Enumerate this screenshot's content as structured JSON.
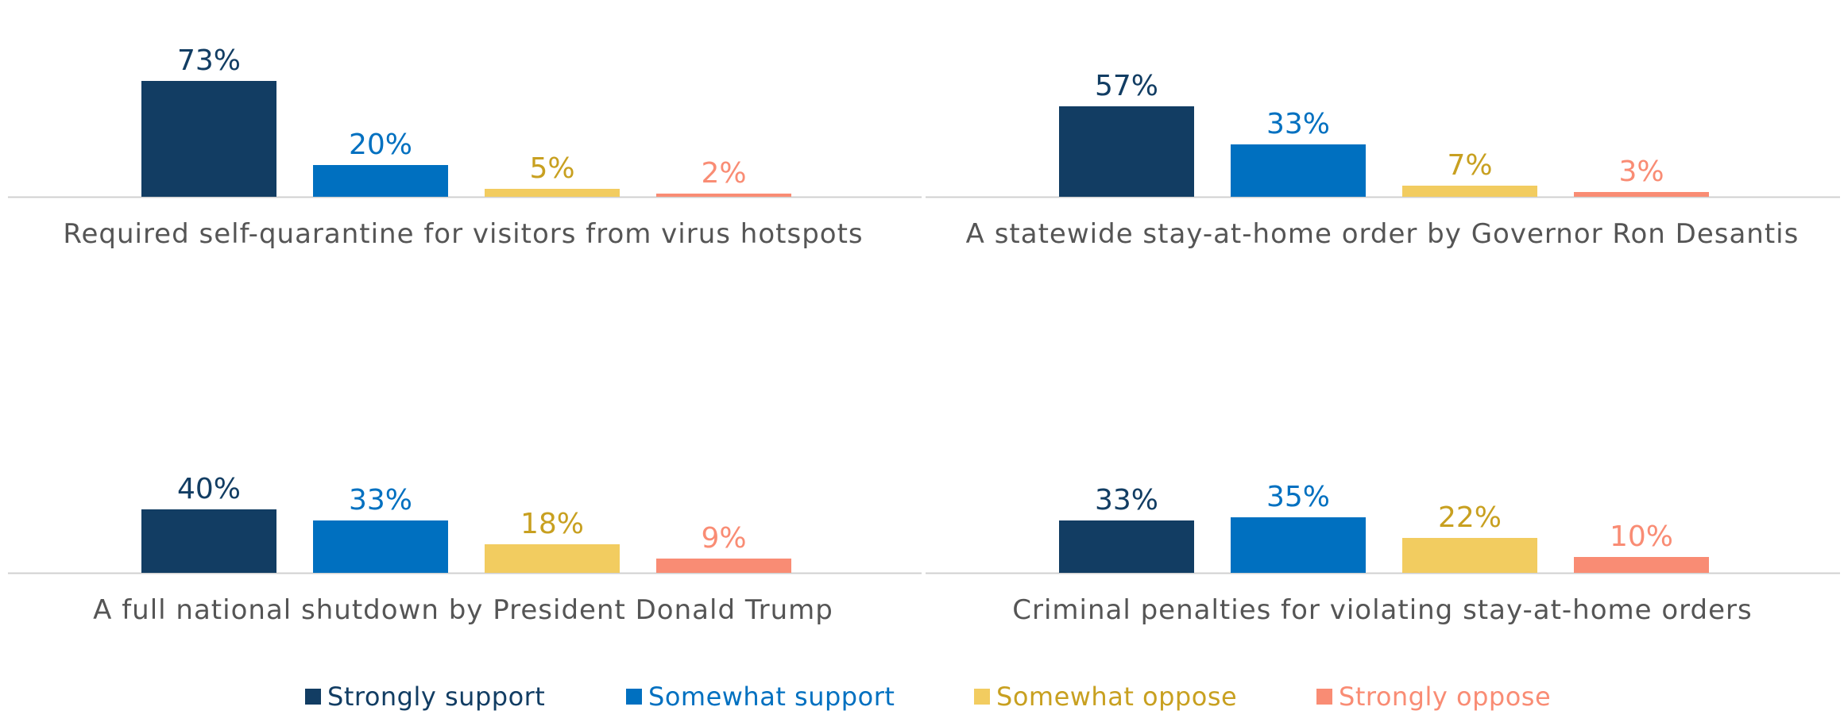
{
  "chart_data": [
    {
      "type": "bar",
      "xlabel": "Required self-quarantine for visitors from virus hotspots",
      "categories": [
        "Strongly support",
        "Somewhat support",
        "Somewhat oppose",
        "Strongly oppose"
      ],
      "values": [
        73,
        20,
        5,
        2
      ],
      "data_labels": [
        "73%",
        "20%",
        "5%",
        "2%"
      ],
      "ylim": [
        0,
        80
      ]
    },
    {
      "type": "bar",
      "xlabel": "A statewide stay-at-home order by Governor Ron Desantis",
      "categories": [
        "Strongly support",
        "Somewhat support",
        "Somewhat oppose",
        "Strongly oppose"
      ],
      "values": [
        57,
        33,
        7,
        3
      ],
      "data_labels": [
        "57%",
        "33%",
        "7%",
        "3%"
      ],
      "ylim": [
        0,
        80
      ]
    },
    {
      "type": "bar",
      "xlabel": "A full national shutdown by President Donald Trump",
      "categories": [
        "Strongly support",
        "Somewhat support",
        "Somewhat oppose",
        "Strongly oppose"
      ],
      "values": [
        40,
        33,
        18,
        9
      ],
      "data_labels": [
        "40%",
        "33%",
        "18%",
        "9%"
      ],
      "ylim": [
        0,
        80
      ]
    },
    {
      "type": "bar",
      "xlabel": "Criminal penalties for violating stay-at-home orders",
      "categories": [
        "Strongly support",
        "Somewhat support",
        "Somewhat oppose",
        "Strongly oppose"
      ],
      "values": [
        33,
        35,
        22,
        10
      ],
      "data_labels": [
        "33%",
        "35%",
        "22%",
        "10%"
      ],
      "ylim": [
        0,
        80
      ]
    }
  ],
  "legend": {
    "position": "bottom",
    "items": [
      {
        "label": "Strongly support",
        "color": "#123d63"
      },
      {
        "label": "Somewhat support",
        "color": "#0070c0"
      },
      {
        "label": "Somewhat oppose",
        "color": "#f2cc60"
      },
      {
        "label": "Strongly oppose",
        "color": "#f98c74"
      }
    ]
  },
  "label_colors": [
    "#123d63",
    "#0070c0",
    "#c8a020",
    "#f98c74"
  ],
  "axis_color": "#d0d0d0",
  "text_color": "#555555"
}
